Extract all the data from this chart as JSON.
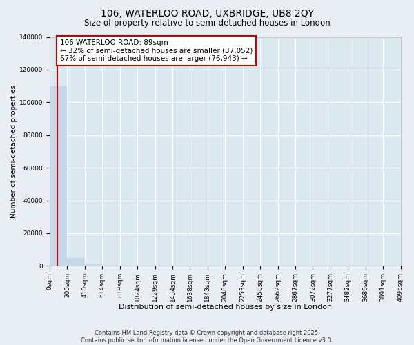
{
  "title": "106, WATERLOO ROAD, UXBRIDGE, UB8 2QY",
  "subtitle": "Size of property relative to semi-detached houses in London",
  "xlabel": "Distribution of semi-detached houses by size in London",
  "ylabel": "Number of semi-detached properties",
  "annotation_line1": "106 WATERLOO ROAD: 89sqm",
  "annotation_line2": "← 32% of semi-detached houses are smaller (37,052)",
  "annotation_line3": "67% of semi-detached houses are larger (76,943) →",
  "red_line_x": 0.43,
  "bar_color": "#c6d9e8",
  "red_line_color": "#cc0000",
  "bin_labels": [
    "0sqm",
    "205sqm",
    "410sqm",
    "614sqm",
    "819sqm",
    "1024sqm",
    "1229sqm",
    "1434sqm",
    "1638sqm",
    "1843sqm",
    "2048sqm",
    "2253sqm",
    "2458sqm",
    "2662sqm",
    "2867sqm",
    "3072sqm",
    "3277sqm",
    "3482sqm",
    "3686sqm",
    "3891sqm",
    "4096sqm"
  ],
  "bar_heights": [
    110000,
    5000,
    800,
    200,
    80,
    40,
    20,
    12,
    8,
    5,
    3,
    2,
    1,
    1,
    0,
    0,
    0,
    0,
    0,
    0
  ],
  "ylim": [
    0,
    140000
  ],
  "yticks": [
    0,
    20000,
    40000,
    60000,
    80000,
    100000,
    120000,
    140000
  ],
  "background_color": "#e8eef4",
  "plot_bg_color": "#dce8f0",
  "footer_line1": "Contains HM Land Registry data © Crown copyright and database right 2025.",
  "footer_line2": "Contains public sector information licensed under the Open Government Licence v3.0.",
  "title_fontsize": 10,
  "subtitle_fontsize": 8.5,
  "tick_fontsize": 6.5,
  "xlabel_fontsize": 8,
  "ylabel_fontsize": 7.5,
  "annotation_fontsize": 7.5,
  "footer_fontsize": 6
}
